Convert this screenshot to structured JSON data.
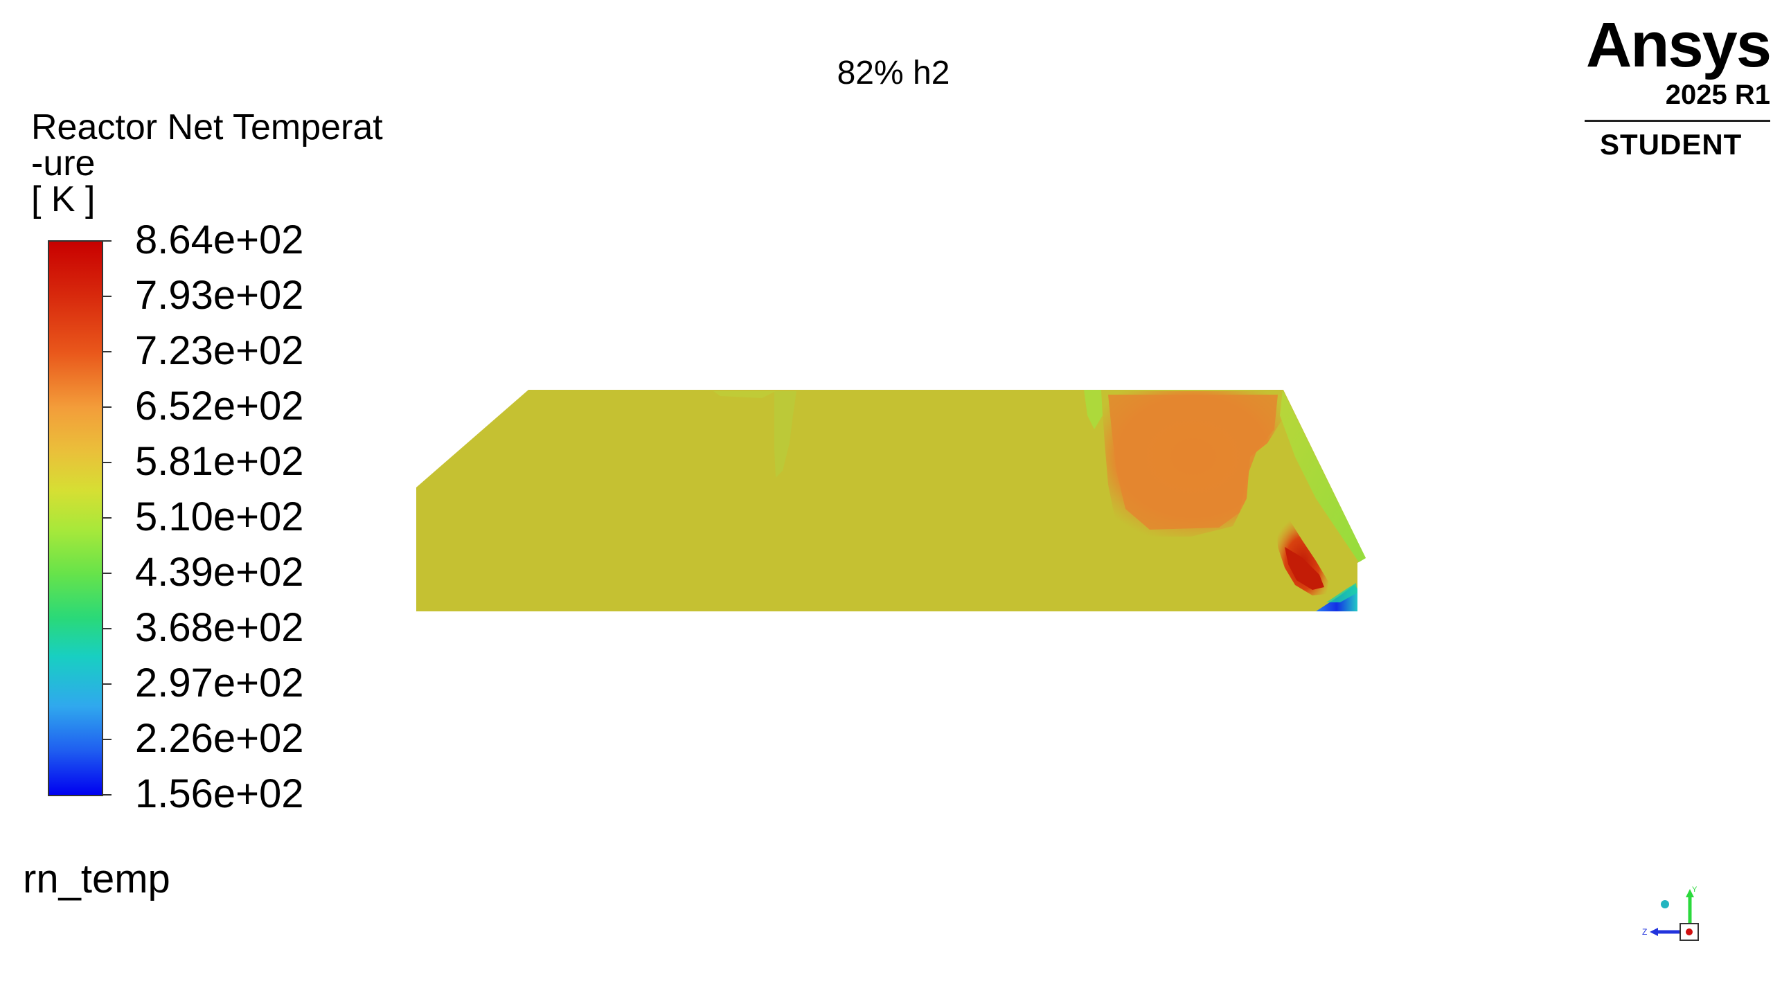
{
  "viewer": {
    "title": "82% h2",
    "variable_name": "rn_temp"
  },
  "legend": {
    "title_lines": [
      "Reactor Net Temperat",
      "-ure",
      "[ K ]"
    ],
    "tick_labels": [
      "8.64e+02",
      "7.93e+02",
      "7.23e+02",
      "6.52e+02",
      "5.81e+02",
      "5.10e+02",
      "4.39e+02",
      "3.68e+02",
      "2.97e+02",
      "2.26e+02",
      "1.56e+02"
    ],
    "colormap_stops": [
      "#c80000",
      "#e9571b",
      "#f39d3a",
      "#d6df33",
      "#67e34a",
      "#18cfc2",
      "#30a8ee",
      "#0000f0"
    ]
  },
  "branding": {
    "product": "Ansys",
    "release": "2025 R1",
    "edition": "STUDENT"
  },
  "axes_triad": {
    "x_label": "",
    "y_label": "Y",
    "z_label": "Z"
  },
  "contour_colors": {
    "base": "#c5c132",
    "hot_region": "#e8832e",
    "hottest": "#c8250a",
    "cold": "#1f3fe0",
    "boundary": "#a8e03a"
  }
}
